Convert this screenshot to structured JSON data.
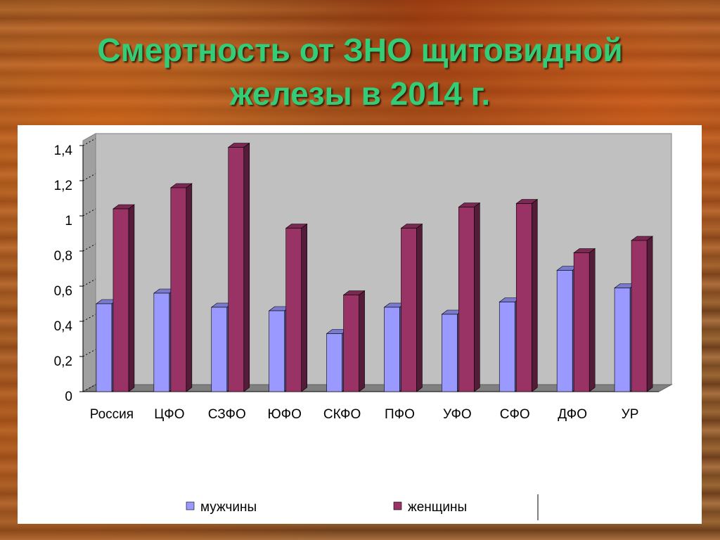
{
  "chart_data": {
    "type": "bar3d",
    "title": "Смертность от ЗНО щитовидной железы в 2014 г.",
    "categories": [
      "Россия",
      "ЦФО",
      "СЗФО",
      "ЮФО",
      "СКФО",
      "ПФО",
      "УФО",
      "СФО",
      "ДФО",
      "УР"
    ],
    "series": [
      {
        "name": "мужчины",
        "color": "#9999ff",
        "values": [
          0.5,
          0.56,
          0.48,
          0.46,
          0.33,
          0.48,
          0.44,
          0.51,
          0.69,
          0.59
        ]
      },
      {
        "name": "женщины",
        "color": "#993366",
        "values": [
          1.04,
          1.16,
          1.39,
          0.93,
          0.55,
          0.93,
          1.05,
          1.07,
          0.79,
          0.86
        ]
      }
    ],
    "ylim": [
      0,
      1.4
    ],
    "yticks": [
      0,
      {
        "value": 0.2,
        "label": "0,2"
      },
      {
        "value": 0.4,
        "label": "0,4"
      },
      {
        "value": 0.6,
        "label": "0,6"
      },
      {
        "value": 0.8,
        "label": "0,8"
      },
      1,
      {
        "value": 1.2,
        "label": "1,2"
      },
      {
        "value": 1.4,
        "label": "1,4"
      }
    ],
    "legend": "bottom"
  }
}
